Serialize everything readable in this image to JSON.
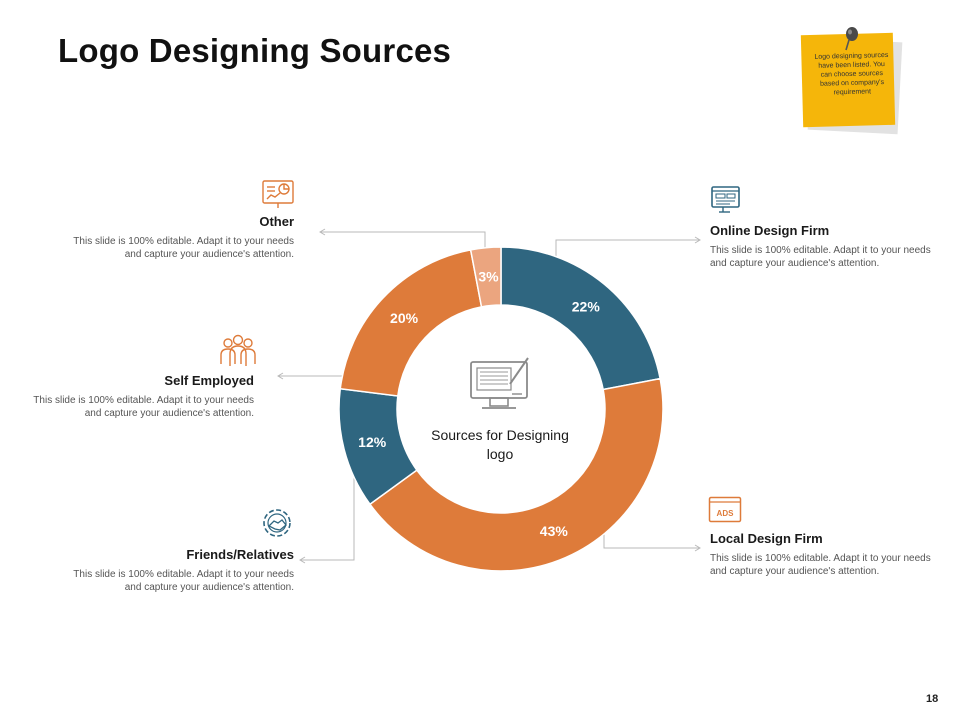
{
  "slide": {
    "title": "Logo Designing Sources",
    "page_number": "18",
    "note": "Logo designing sources have been listed. You can choose sources based on company's requirement",
    "center_label": "Sources for Designing logo"
  },
  "colors": {
    "blue": "#2f6680",
    "orange": "#de7b3a",
    "peach": "#eba57f",
    "yellow": "#f5b60a",
    "connector": "#b9b9b9"
  },
  "items": [
    {
      "title": "Online Design Firm",
      "desc": "This slide is 100% editable. Adapt it to your needs and capture your audience's attention.",
      "icon": "monitor-web-icon"
    },
    {
      "title": "Local Design Firm",
      "desc": "This slide is 100% editable. Adapt it to your needs and capture your audience's attention.",
      "icon": "ads-browser-icon",
      "icon_text": "ADS"
    },
    {
      "title": "Friends/Relatives",
      "desc": "This slide is 100% editable. Adapt it to your needs and capture your audience's attention.",
      "icon": "handshake-gear-icon"
    },
    {
      "title": "Self Employed",
      "desc": "This slide is 100% editable. Adapt it to your needs and capture your audience's attention.",
      "icon": "team-icon"
    },
    {
      "title": "Other",
      "desc": "This slide is 100% editable. Adapt it to your needs and capture your audience's attention.",
      "icon": "presentation-board-icon"
    }
  ],
  "chart_data": {
    "type": "pie",
    "donut": true,
    "title": "",
    "categories": [
      "Online Design Firm",
      "Local Design Firm",
      "Friends/Relatives",
      "Self Employed",
      "Other"
    ],
    "values": [
      22,
      43,
      12,
      20,
      3
    ],
    "labels": [
      "22%",
      "43%",
      "12%",
      "20%",
      "3%"
    ],
    "colors": [
      "#2f6680",
      "#de7b3a",
      "#2f6680",
      "#de7b3a",
      "#eba57f"
    ],
    "start_angle": "top, clockwise",
    "legend": "none"
  }
}
